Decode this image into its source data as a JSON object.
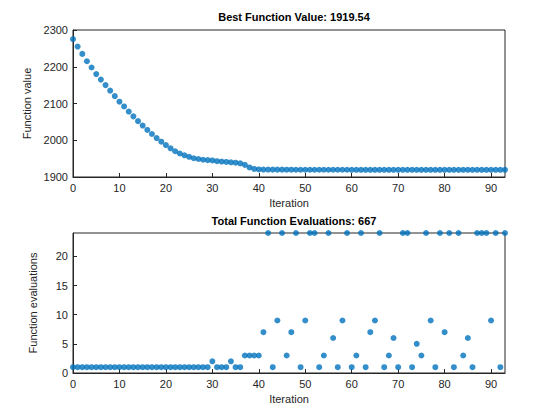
{
  "chart_data": [
    {
      "type": "scatter",
      "title": "Best Function Value: 1919.54",
      "xlabel": "Iteration",
      "ylabel": "Function value",
      "x": [
        0,
        1,
        2,
        3,
        4,
        5,
        6,
        7,
        8,
        9,
        10,
        11,
        12,
        13,
        14,
        15,
        16,
        17,
        18,
        19,
        20,
        21,
        22,
        23,
        24,
        25,
        26,
        27,
        28,
        29,
        30,
        31,
        32,
        33,
        34,
        35,
        36,
        37,
        38,
        39,
        40,
        41,
        42,
        43,
        44,
        45,
        46,
        47,
        48,
        49,
        50,
        51,
        52,
        53,
        54,
        55,
        56,
        57,
        58,
        59,
        60,
        61,
        62,
        63,
        64,
        65,
        66,
        67,
        68,
        69,
        70,
        71,
        72,
        73,
        74,
        75,
        76,
        77,
        78,
        79,
        80,
        81,
        82,
        83,
        84,
        85,
        86,
        87,
        88,
        89,
        90,
        91,
        92,
        93
      ],
      "values": [
        2275,
        2255,
        2235,
        2215,
        2198,
        2180,
        2165,
        2150,
        2135,
        2120,
        2105,
        2092,
        2078,
        2065,
        2052,
        2040,
        2028,
        2017,
        2006,
        1996,
        1987,
        1978,
        1970,
        1964,
        1959,
        1955,
        1951,
        1949,
        1947,
        1946,
        1945,
        1943,
        1942,
        1941,
        1940,
        1939,
        1937,
        1933,
        1926,
        1922,
        1920.5,
        1920.3,
        1920.2,
        1920.1,
        1920,
        1920,
        1919.9,
        1919.9,
        1919.8,
        1919.8,
        1919.7,
        1919.7,
        1919.7,
        1919.7,
        1919.7,
        1919.7,
        1919.7,
        1919.7,
        1919.7,
        1919.7,
        1919.6,
        1919.6,
        1919.6,
        1919.6,
        1919.6,
        1919.6,
        1919.6,
        1919.6,
        1919.6,
        1919.6,
        1919.6,
        1919.6,
        1919.6,
        1919.6,
        1919.6,
        1919.6,
        1919.6,
        1919.6,
        1919.6,
        1919.6,
        1919.55,
        1919.55,
        1919.55,
        1919.55,
        1919.55,
        1919.55,
        1919.55,
        1919.55,
        1919.55,
        1919.55,
        1919.55,
        1919.55,
        1919.55,
        1919.54
      ],
      "color": "#0072BD",
      "marker": "circle",
      "grid": false,
      "xlim": [
        0,
        93
      ],
      "xticks": [
        0,
        10,
        20,
        30,
        40,
        50,
        60,
        70,
        80,
        90
      ],
      "ylim": [
        1900,
        2300
      ],
      "yticks": [
        1900,
        2000,
        2100,
        2200,
        2300
      ]
    },
    {
      "type": "scatter",
      "title": "Total Function Evaluations: 667",
      "xlabel": "Iteration",
      "ylabel": "Function evaluations",
      "x": [
        0,
        1,
        2,
        3,
        4,
        5,
        6,
        7,
        8,
        9,
        10,
        11,
        12,
        13,
        14,
        15,
        16,
        17,
        18,
        19,
        20,
        21,
        22,
        23,
        24,
        25,
        26,
        27,
        28,
        29,
        30,
        31,
        32,
        33,
        34,
        35,
        36,
        37,
        38,
        39,
        40,
        41,
        42,
        43,
        44,
        45,
        46,
        47,
        48,
        49,
        50,
        51,
        52,
        53,
        54,
        55,
        56,
        57,
        58,
        59,
        60,
        61,
        62,
        63,
        64,
        65,
        66,
        67,
        68,
        69,
        70,
        71,
        72,
        73,
        74,
        75,
        76,
        77,
        78,
        79,
        80,
        81,
        82,
        83,
        84,
        85,
        86,
        87,
        88,
        89,
        90,
        91,
        92,
        93
      ],
      "values": [
        1,
        1,
        1,
        1,
        1,
        1,
        1,
        1,
        1,
        1,
        1,
        1,
        1,
        1,
        1,
        1,
        1,
        1,
        1,
        1,
        1,
        1,
        1,
        1,
        1,
        1,
        1,
        1,
        1,
        1,
        2,
        1,
        1,
        1,
        2,
        1,
        1,
        3,
        3,
        3,
        3,
        7,
        24,
        1,
        9,
        24,
        3,
        7,
        24,
        1,
        9,
        24,
        24,
        1,
        3,
        24,
        6,
        1,
        9,
        24,
        1,
        3,
        24,
        1,
        7,
        9,
        24,
        1,
        3,
        6,
        1,
        24,
        24,
        1,
        5,
        3,
        24,
        9,
        1,
        24,
        7,
        24,
        1,
        24,
        3,
        6,
        1,
        24,
        24,
        24,
        9,
        24,
        1,
        24
      ],
      "color": "#0072BD",
      "marker": "circle",
      "grid": false,
      "xlim": [
        0,
        93
      ],
      "xticks": [
        0,
        10,
        20,
        30,
        40,
        50,
        60,
        70,
        80,
        90
      ],
      "ylim": [
        0,
        24
      ],
      "yticks": [
        0,
        5,
        10,
        15,
        20
      ]
    }
  ]
}
